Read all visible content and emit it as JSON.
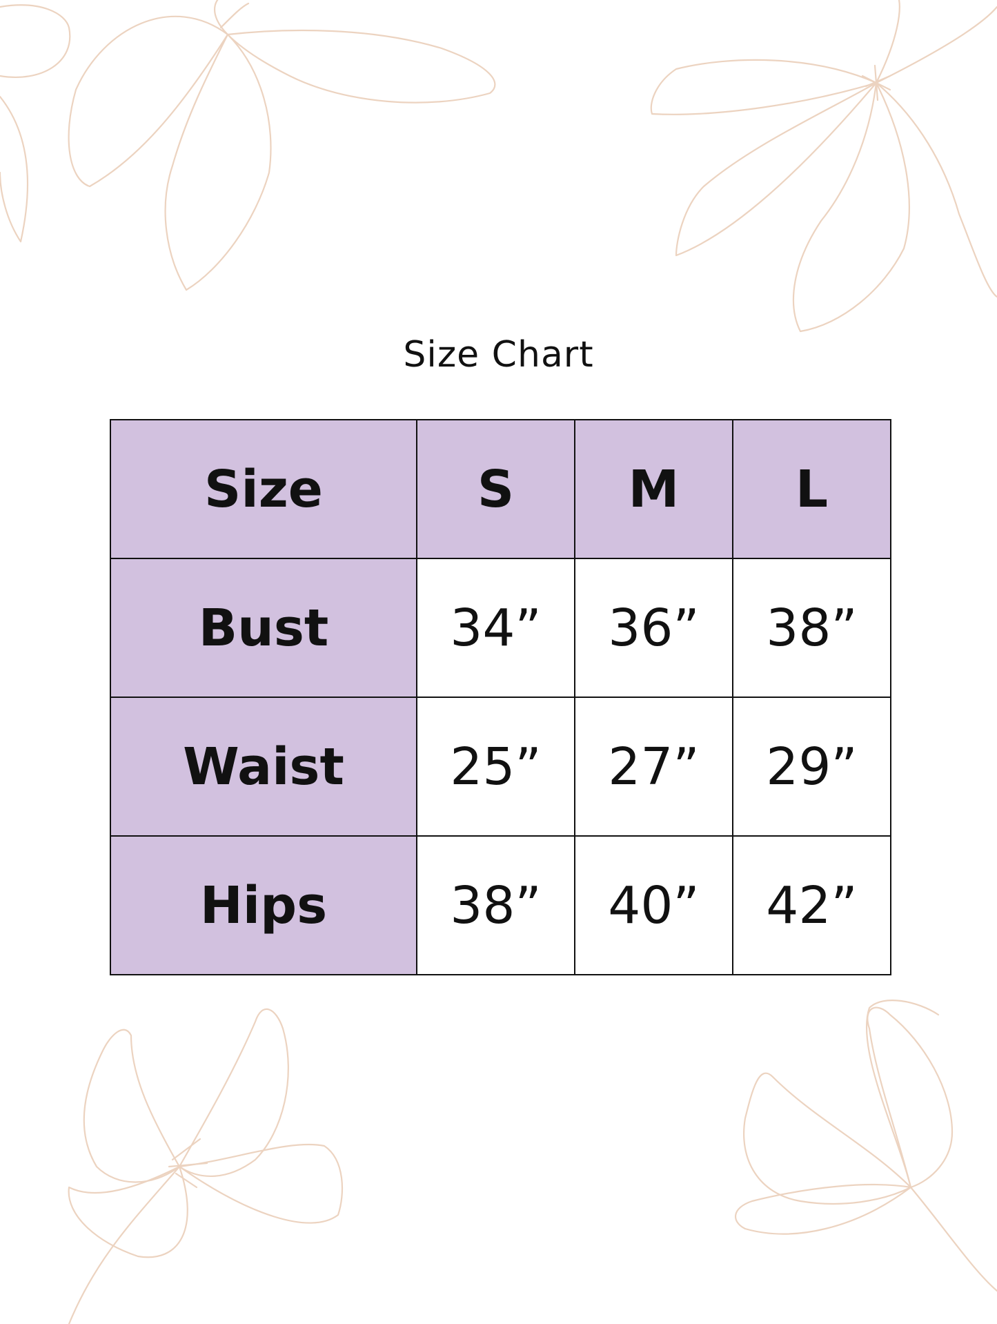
{
  "title": "Size Chart",
  "colors": {
    "header_fill": "#d2c1df",
    "border": "#111111",
    "flower_outline": "#ecd3c0"
  },
  "table": {
    "header": [
      "Size",
      "S",
      "M",
      "L"
    ],
    "rows": [
      {
        "label": "Bust",
        "values": [
          "34”",
          "36”",
          "38”"
        ]
      },
      {
        "label": "Waist",
        "values": [
          "25”",
          "27”",
          "29”"
        ]
      },
      {
        "label": "Hips",
        "values": [
          "38”",
          "40”",
          "42”"
        ]
      }
    ]
  }
}
